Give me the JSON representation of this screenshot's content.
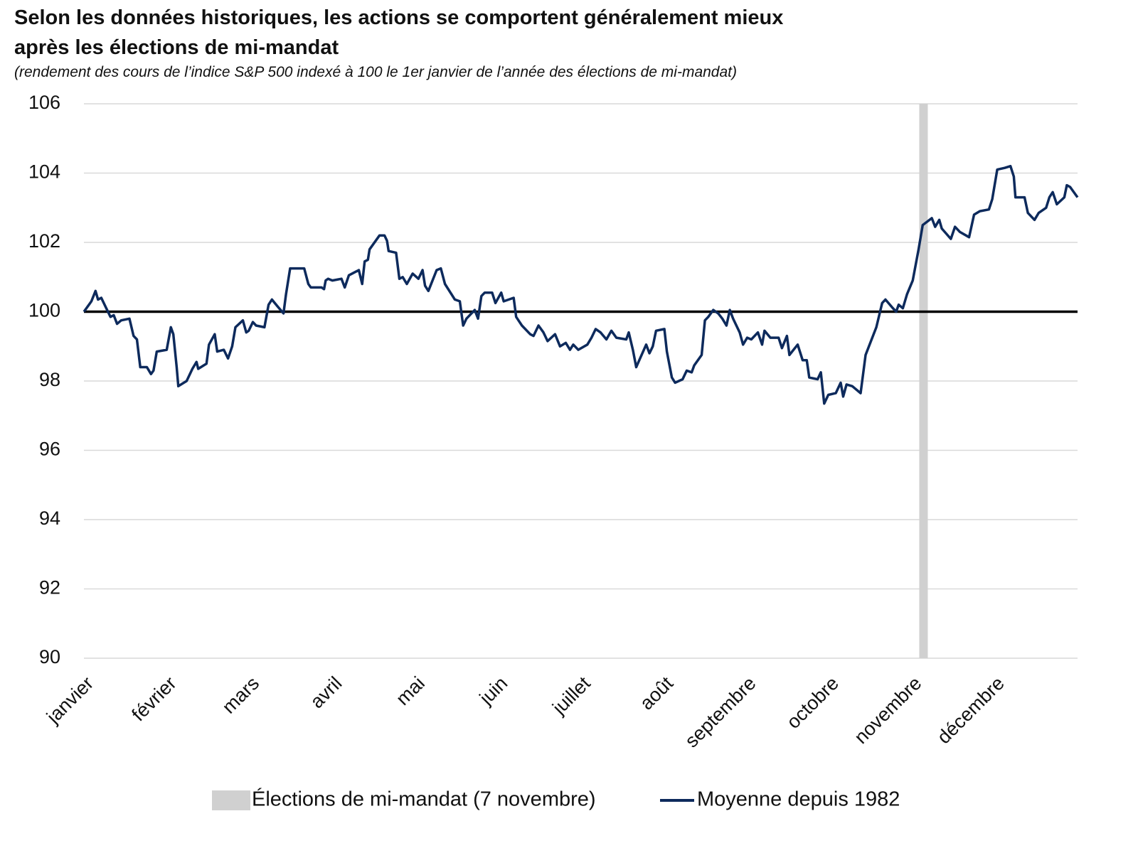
{
  "chart_data": {
    "type": "line",
    "title": "Selon les données historiques, les actions se comportent généralement mieux après les élections de mi-mandat",
    "subtitle": "(rendement des cours de l’indice S&P 500 indexé à 100 le 1er janvier de l’année des élections de mi-mandat)",
    "xlim": [
      0,
      12
    ],
    "xticks": [
      {
        "value": 0,
        "label": "janvier"
      },
      {
        "value": 1,
        "label": "février"
      },
      {
        "value": 2,
        "label": "mars"
      },
      {
        "value": 3,
        "label": "avril"
      },
      {
        "value": 4,
        "label": "mai"
      },
      {
        "value": 5,
        "label": "juin"
      },
      {
        "value": 6,
        "label": "juillet"
      },
      {
        "value": 7,
        "label": "août"
      },
      {
        "value": 8,
        "label": "septembre"
      },
      {
        "value": 9,
        "label": "octobre"
      },
      {
        "value": 10,
        "label": "novembre"
      },
      {
        "value": 11,
        "label": "décembre"
      }
    ],
    "ylim": [
      90,
      106
    ],
    "yticks": [
      90,
      92,
      94,
      96,
      98,
      100,
      102,
      104,
      106
    ],
    "grid": true,
    "baseline": 100,
    "band": {
      "x": 10.14,
      "label": "Élections de mi-mandat (7 novembre)",
      "color": "#d0d0d0"
    },
    "x": [
      0,
      0.09,
      0.14,
      0.17,
      0.21,
      0.27,
      0.32,
      0.36,
      0.4,
      0.45,
      0.55,
      0.6,
      0.64,
      0.68,
      0.76,
      0.81,
      0.84,
      0.88,
      1.0,
      1.05,
      1.08,
      1.12,
      1.14,
      1.24,
      1.31,
      1.36,
      1.38,
      1.48,
      1.51,
      1.58,
      1.61,
      1.69,
      1.74,
      1.79,
      1.83,
      1.92,
      1.96,
      1.99,
      2.04,
      2.08,
      2.18,
      2.23,
      2.27,
      2.34,
      2.41,
      2.44,
      2.49,
      2.66,
      2.71,
      2.74,
      2.87,
      2.9,
      2.92,
      2.95,
      3.0,
      3.11,
      3.15,
      3.2,
      3.28,
      3.32,
      3.36,
      3.39,
      3.43,
      3.45,
      3.57,
      3.63,
      3.66,
      3.68,
      3.77,
      3.81,
      3.85,
      3.9,
      3.97,
      4.04,
      4.09,
      4.12,
      4.16,
      4.26,
      4.31,
      4.36,
      4.48,
      4.54,
      4.58,
      4.62,
      4.72,
      4.76,
      4.8,
      4.84,
      4.93,
      4.97,
      5.04,
      5.07,
      5.19,
      5.22,
      5.29,
      5.39,
      5.43,
      5.49,
      5.55,
      5.6,
      5.69,
      5.75,
      5.82,
      5.87,
      5.91,
      5.97,
      6.08,
      6.13,
      6.18,
      6.24,
      6.31,
      6.37,
      6.43,
      6.55,
      6.58,
      6.63,
      6.67,
      6.79,
      6.83,
      6.87,
      6.91,
      7.01,
      7.04,
      7.1,
      7.14,
      7.23,
      7.28,
      7.34,
      7.37,
      7.46,
      7.5,
      7.54,
      7.6,
      7.66,
      7.71,
      7.76,
      7.8,
      7.84,
      7.92,
      7.96,
      8.01,
      8.06,
      8.14,
      8.19,
      8.22,
      8.29,
      8.39,
      8.43,
      8.49,
      8.52,
      8.62,
      8.68,
      8.73,
      8.76,
      8.86,
      8.9,
      8.94,
      8.99,
      9.08,
      9.14,
      9.17,
      9.21,
      9.28,
      9.38,
      9.44,
      9.57,
      9.64,
      9.68,
      9.77,
      9.81,
      9.84,
      9.89,
      9.94,
      10.01,
      10.08,
      10.13,
      10.24,
      10.28,
      10.33,
      10.36,
      10.47,
      10.52,
      10.58,
      10.69,
      10.75,
      10.82,
      10.93,
      10.97,
      11.03,
      11.12,
      11.19,
      11.23,
      11.25,
      11.36,
      11.4,
      11.48,
      11.53,
      11.62,
      11.66,
      11.7,
      11.75,
      11.84,
      11.87,
      11.91,
      12.0
    ],
    "series": [
      {
        "name": "Moyenne depuis 1982",
        "color": "#0d2a5c",
        "values": [
          100,
          100.3,
          100.6,
          100.35,
          100.4,
          100.1,
          99.85,
          99.9,
          99.65,
          99.75,
          99.8,
          99.3,
          99.2,
          98.4,
          98.4,
          98.2,
          98.3,
          98.85,
          98.9,
          99.55,
          99.35,
          98.4,
          97.85,
          98.0,
          98.35,
          98.55,
          98.35,
          98.5,
          99.05,
          99.35,
          98.85,
          98.9,
          98.65,
          99.0,
          99.55,
          99.75,
          99.4,
          99.45,
          99.7,
          99.6,
          99.55,
          100.2,
          100.35,
          100.15,
          99.95,
          100.5,
          101.25,
          101.25,
          100.8,
          100.7,
          100.7,
          100.65,
          100.9,
          100.95,
          100.9,
          100.95,
          100.7,
          101.05,
          101.15,
          101.2,
          100.8,
          101.45,
          101.5,
          101.8,
          102.2,
          102.2,
          102.05,
          101.75,
          101.7,
          100.95,
          101.0,
          100.8,
          101.1,
          100.95,
          101.2,
          100.75,
          100.6,
          101.2,
          101.25,
          100.8,
          100.35,
          100.3,
          99.6,
          99.8,
          100.05,
          99.8,
          100.45,
          100.55,
          100.55,
          100.25,
          100.55,
          100.3,
          100.4,
          99.85,
          99.6,
          99.35,
          99.3,
          99.6,
          99.4,
          99.15,
          99.35,
          99.0,
          99.1,
          98.9,
          99.05,
          98.9,
          99.05,
          99.25,
          99.5,
          99.4,
          99.2,
          99.45,
          99.25,
          99.2,
          99.4,
          98.9,
          98.4,
          99.05,
          98.8,
          99.0,
          99.45,
          99.5,
          98.85,
          98.1,
          97.95,
          98.05,
          98.3,
          98.25,
          98.45,
          98.75,
          99.75,
          99.85,
          100.05,
          99.95,
          99.8,
          99.6,
          100.05,
          99.8,
          99.4,
          99.05,
          99.25,
          99.2,
          99.4,
          99.05,
          99.45,
          99.25,
          99.25,
          98.95,
          99.3,
          98.75,
          99.05,
          98.6,
          98.6,
          98.1,
          98.05,
          98.25,
          97.35,
          97.6,
          97.65,
          97.95,
          97.55,
          97.9,
          97.85,
          97.65,
          98.75,
          99.55,
          100.25,
          100.35,
          100.1,
          100.0,
          100.2,
          100.1,
          100.5,
          100.9,
          101.8,
          102.5,
          102.7,
          102.45,
          102.65,
          102.4,
          102.1,
          102.45,
          102.3,
          102.15,
          102.8,
          102.9,
          102.95,
          103.25,
          104.1,
          104.15,
          104.2,
          103.9,
          103.3,
          103.3,
          102.85,
          102.65,
          102.85,
          103.0,
          103.3,
          103.45,
          103.1,
          103.3,
          103.65,
          103.6,
          103.3
        ]
      }
    ]
  }
}
